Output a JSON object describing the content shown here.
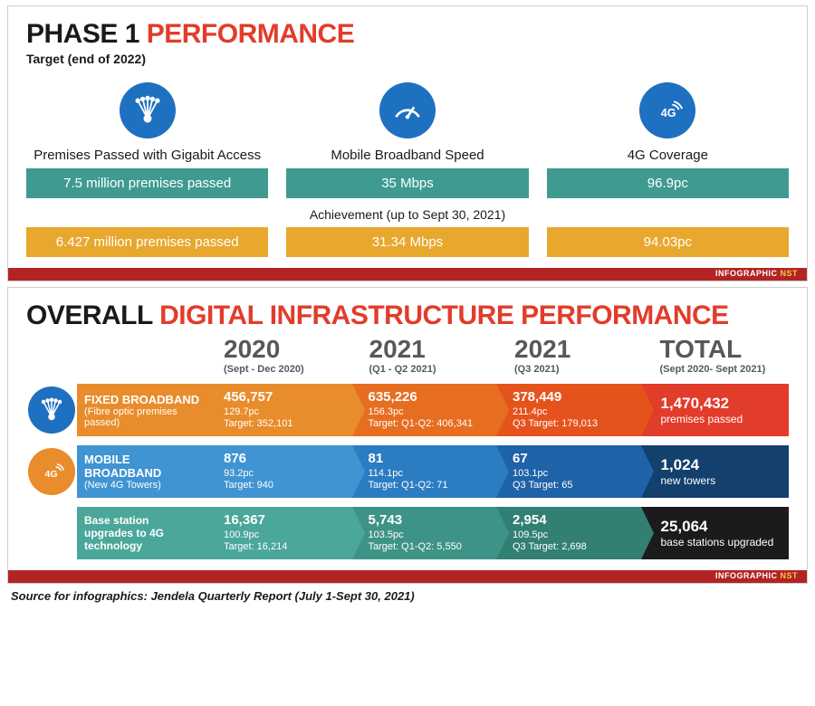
{
  "colors": {
    "accent_red": "#e23c2a",
    "footer_red": "#b22424",
    "footer_accent": "#f2c64a",
    "icon_blue": "#1e70c0",
    "teal": "#3f9b8f",
    "mustard": "#e8a82e",
    "orange1": "#e98c2b",
    "orange2": "#e76d21",
    "orange3": "#e5531c",
    "orange_total": "#e23c2a",
    "blue1": "#3f94d1",
    "blue2": "#2c7cc2",
    "blue3": "#1e62a8",
    "blue_total": "#13406d",
    "teal1": "#4aa79a",
    "teal2": "#3e9387",
    "teal3": "#327f74",
    "teal_total": "#1b1b1b",
    "grey_text": "#585858"
  },
  "panel1": {
    "title_part1": "PHASE 1 ",
    "title_part2": "PERFORMANCE",
    "subtitle": "Target (end of 2022)",
    "achievement_label": "Achievement (up to Sept 30, 2021)",
    "cols": [
      {
        "icon": "fibre",
        "label": "Premises Passed with Gigabit Access",
        "target": "7.5 million premises passed",
        "achieved": "6.427 million premises passed"
      },
      {
        "icon": "speed",
        "label": "Mobile Broadband Speed",
        "target": "35 Mbps",
        "achieved": "31.34 Mbps"
      },
      {
        "icon": "4g",
        "label": "4G Coverage",
        "target": "96.9pc",
        "achieved": "94.03pc"
      }
    ],
    "footer_plain": "INFOGRAPHIC ",
    "footer_accent": "NST"
  },
  "panel2": {
    "title_part1": "OVERALL ",
    "title_part2": "DIGITAL INFRASTRUCTURE PERFORMANCE",
    "years": [
      {
        "year": "2020",
        "sub": "(Sept - Dec 2020)"
      },
      {
        "year": "2021",
        "sub": "(Q1 - Q2 2021)"
      },
      {
        "year": "2021",
        "sub": "(Q3 2021)"
      },
      {
        "year": "TOTAL",
        "sub": "(Sept 2020- Sept 2021)"
      }
    ],
    "rows": [
      {
        "icon": "fibre",
        "icon_bg": "#1e70c0",
        "label_bg": "#e98c2b",
        "label_bold": "FIXED BROADBAND",
        "label_sub": "(Fibre optic premises passed)",
        "segs": [
          {
            "bg": "#e98c2b",
            "big": "456,757",
            "line2": "129.7pc",
            "line3": "Target: 352,101"
          },
          {
            "bg": "#e76d21",
            "big": "635,226",
            "line2": "156.3pc",
            "line3": "Target: Q1-Q2: 406,341"
          },
          {
            "bg": "#e5531c",
            "big": "378,449",
            "line2": "211.4pc",
            "line3": "Q3 Target: 179,013"
          }
        ],
        "total": {
          "bg": "#e23c2a",
          "big": "1,470,432",
          "sub": "premises passed"
        }
      },
      {
        "icon": "4g",
        "icon_bg": "#e98c2b",
        "label_bg": "#3f94d1",
        "label_bold": "MOBILE BROADBAND",
        "label_sub": "(New 4G Towers)",
        "segs": [
          {
            "bg": "#3f94d1",
            "big": "876",
            "line2": "93.2pc",
            "line3": "Target: 940"
          },
          {
            "bg": "#2c7cc2",
            "big": "81",
            "line2": "114.1pc",
            "line3": "Target: Q1-Q2: 71"
          },
          {
            "bg": "#1e62a8",
            "big": "67",
            "line2": "103.1pc",
            "line3": "Q3 Target: 65"
          }
        ],
        "total": {
          "bg": "#13406d",
          "big": "1,024",
          "sub": "new towers"
        }
      },
      {
        "icon": "",
        "icon_bg": "",
        "label_bg": "#4aa79a",
        "label_bold": "",
        "label_sub": "Base station upgrades to 4G technology",
        "segs": [
          {
            "bg": "#4aa79a",
            "big": "16,367",
            "line2": "100.9pc",
            "line3": "Target: 16,214"
          },
          {
            "bg": "#3e9387",
            "big": "5,743",
            "line2": "103.5pc",
            "line3": "Target: Q1-Q2: 5,550"
          },
          {
            "bg": "#327f74",
            "big": "2,954",
            "line2": "109.5pc",
            "line3": "Q3 Target: 2,698"
          }
        ],
        "total": {
          "bg": "#1b1b1b",
          "big": "25,064",
          "sub": "base stations upgraded"
        }
      }
    ],
    "footer_plain": "INFOGRAPHIC ",
    "footer_accent": "NST"
  },
  "source": "Source for infographics: Jendela Quarterly Report (July 1-Sept 30, 2021)"
}
